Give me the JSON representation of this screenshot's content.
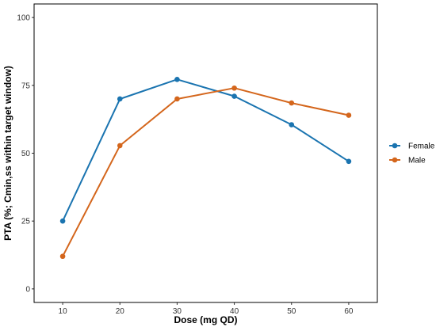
{
  "chart_data": {
    "type": "line",
    "xlabel": "Dose (mg QD)",
    "ylabel": "PTA (%; Cmin,ss within target window)",
    "x": [
      10,
      20,
      30,
      40,
      50,
      60
    ],
    "xlim": [
      5,
      65
    ],
    "ylim": [
      -5,
      105
    ],
    "xticks": [
      10,
      20,
      30,
      40,
      50,
      60
    ],
    "yticks": [
      0,
      25,
      50,
      75,
      100
    ],
    "grid": false,
    "legend_position": "right",
    "series": [
      {
        "name": "Female",
        "color": "#1a74b0",
        "values": [
          25,
          70,
          77.2,
          71,
          60.5,
          47
        ]
      },
      {
        "name": "Male",
        "color": "#d4661c",
        "values": [
          12,
          52.8,
          70,
          74,
          68.5,
          64
        ]
      }
    ]
  }
}
